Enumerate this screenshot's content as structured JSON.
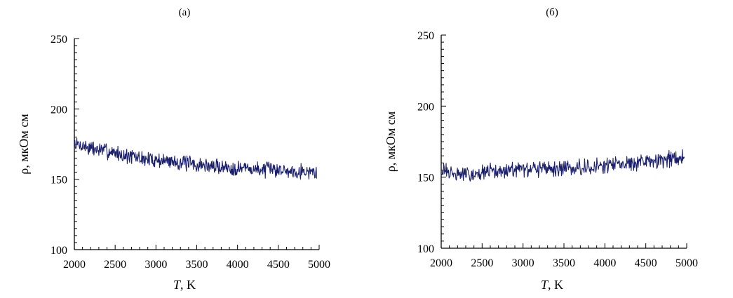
{
  "chart_data": [
    {
      "type": "line",
      "panel_label": "(а)",
      "xlabel_italic": "T",
      "xlabel_rest": ", K",
      "ylabel": "ρ, мкОм см",
      "xlim": [
        2000,
        5000
      ],
      "ylim": [
        100,
        250
      ],
      "xticks": [
        2000,
        2500,
        3000,
        3500,
        4000,
        4500,
        5000
      ],
      "yticks": [
        100,
        150,
        200,
        250
      ],
      "grid": false,
      "legend": "none",
      "color": "#1a1f6e",
      "series": [
        {
          "x": [
            2000,
            2100,
            2200,
            2300,
            2400,
            2500,
            2600,
            2700,
            2800,
            2900,
            3000,
            3100,
            3200,
            3300,
            3400,
            3500,
            3600,
            3700,
            3800,
            3900,
            4000,
            4100,
            4200,
            4300,
            4400,
            4500,
            4600,
            4700,
            4800,
            4900,
            4970
          ],
          "y": [
            175,
            174,
            172,
            171,
            170,
            169,
            167,
            166,
            165,
            164,
            164,
            163,
            163,
            162,
            161,
            160,
            160,
            159,
            159,
            158,
            158,
            158,
            157,
            157,
            157,
            157,
            156,
            156,
            156,
            155,
            155
          ]
        }
      ]
    },
    {
      "type": "line",
      "panel_label": "(б)",
      "xlabel_italic": "T",
      "xlabel_rest": ", K",
      "ylabel": "ρ, мкОм см",
      "xlim": [
        2000,
        5000
      ],
      "ylim": [
        100,
        250
      ],
      "xticks": [
        2000,
        2500,
        3000,
        3500,
        4000,
        4500,
        5000
      ],
      "yticks": [
        100,
        150,
        200,
        250
      ],
      "grid": false,
      "legend": "none",
      "color": "#1a1f6e",
      "series": [
        {
          "x": [
            2000,
            2100,
            2200,
            2300,
            2400,
            2500,
            2600,
            2700,
            2800,
            2900,
            3000,
            3100,
            3200,
            3300,
            3400,
            3500,
            3600,
            3700,
            3800,
            3900,
            4000,
            4100,
            4200,
            4300,
            4400,
            4500,
            4600,
            4700,
            4800,
            4900,
            4970
          ],
          "y": [
            155,
            153,
            152,
            152,
            153,
            153,
            154,
            154,
            155,
            155,
            155,
            155,
            156,
            156,
            156,
            156,
            157,
            157,
            157,
            158,
            158,
            159,
            159,
            160,
            160,
            161,
            161,
            162,
            163,
            164,
            165
          ]
        }
      ]
    }
  ]
}
